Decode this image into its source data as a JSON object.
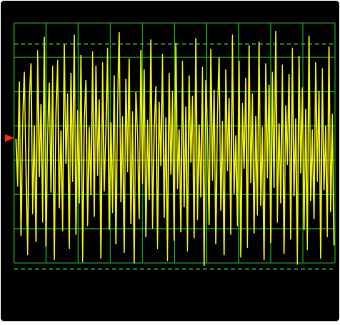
{
  "colors": {
    "background": "#000000",
    "grid": "#1fa21f",
    "dashed_reference": "#3fd13f",
    "trace": "#f2f20a",
    "trigger_marker": "#ff2a00"
  },
  "display": {
    "grid_divisions_x": 10,
    "grid_divisions_y": 7,
    "trace_style": "noise waveform",
    "dashed_reference_lines": 2,
    "trigger_marker_icon": "trigger-level-marker-icon"
  },
  "waveform": {
    "samples": [
      0.08,
      -0.31,
      0.56,
      -0.72,
      0.21,
      0.64,
      -0.15,
      -0.88,
      0.43,
      0.71,
      -0.54,
      0.19,
      -0.77,
      0.82,
      -0.23,
      0.37,
      -0.61,
      0.93,
      -0.81,
      0.11,
      0.55,
      -0.36,
      0.69,
      -0.92,
      0.28,
      0.74,
      -0.49,
      0.15,
      -0.68,
      0.87,
      -0.12,
      0.46,
      -0.83,
      0.63,
      -0.27,
      0.95,
      -0.71,
      0.32,
      -0.45,
      0.78,
      -0.94,
      0.25,
      0.57,
      -0.64,
      0.18,
      -0.38,
      0.81,
      -0.56,
      0.69,
      -0.22,
      0.41,
      -0.91,
      0.72,
      -0.35,
      0.13,
      0.84,
      -0.67,
      0.22,
      -0.53,
      0.61,
      -0.79,
      0.34,
      0.97,
      -0.44,
      0.27,
      -0.86,
      0.58,
      -0.19,
      0.75,
      -0.62,
      0.31,
      -0.95,
      0.47,
      0.12,
      -0.58,
      0.82,
      -0.29,
      0.66,
      -0.73,
      0.24,
      -0.42,
      0.91,
      -0.66,
      0.17,
      0.52,
      -0.83,
      0.39,
      -0.14,
      0.79,
      -0.57,
      0.26,
      -0.93,
      0.63,
      -0.21,
      0.48,
      -0.76,
      0.88,
      -0.33,
      0.16,
      -0.69,
      0.73,
      -0.48,
      0.35,
      -0.85,
      0.61,
      -0.11,
      0.44,
      -0.74,
      0.92,
      -0.59,
      0.2,
      -0.4,
      0.68,
      -0.97,
      0.57,
      0.14,
      -0.63,
      0.83,
      -0.26,
      0.49,
      -0.79,
      0.3,
      0.76,
      -0.51,
      0.23,
      -0.88,
      0.66,
      -0.18,
      0.42,
      -0.71,
      0.95,
      -0.37,
      0.11,
      -0.64,
      0.73,
      -0.9,
      0.38,
      -0.16,
      0.59,
      -0.82,
      0.86,
      -0.28,
      0.46,
      -0.7,
      0.27,
      -0.55,
      0.89,
      -0.47,
      0.18,
      -0.92,
      0.71,
      -0.24,
      0.53,
      -0.78,
      0.64,
      -0.32,
      0.98,
      -0.61,
      0.21,
      -0.45,
      0.7,
      -0.87,
      0.36,
      -0.13,
      0.62,
      -0.75,
      0.84,
      -0.39,
      0.25,
      -0.96,
      0.77,
      -0.2,
      0.51,
      -0.67,
      0.33,
      -0.84,
      0.94,
      -0.43,
      0.16,
      -0.58,
      0.72,
      -0.27,
      0.48,
      -0.91,
      0.67,
      -0.34,
      0.19,
      -0.73,
      0.85,
      -0.52,
      0.29,
      -0.8
    ]
  }
}
